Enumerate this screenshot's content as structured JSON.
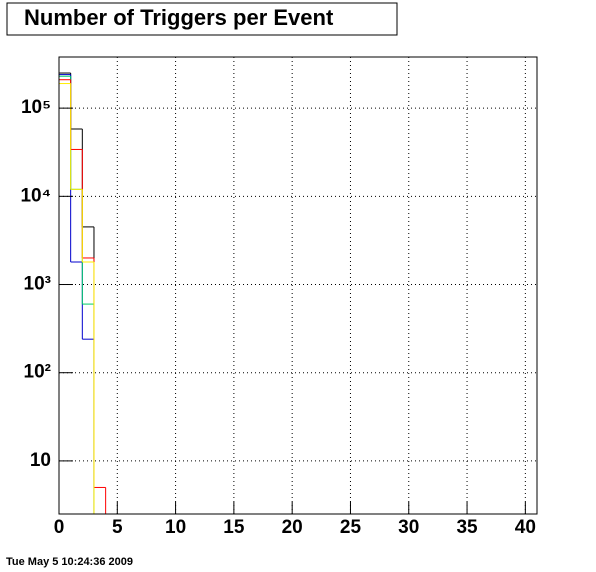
{
  "chart_data": {
    "type": "histogram",
    "title": "Number of Triggers per Event",
    "footer": "Tue May  5 10:24:36 2009",
    "bins": [
      0,
      1,
      2,
      3,
      4
    ],
    "series": [
      {
        "color": "#000000",
        "values": [
          250000,
          58000,
          4500,
          0
        ]
      },
      {
        "color": "#0000cc",
        "values": [
          240000,
          1800,
          240,
          0
        ]
      },
      {
        "color": "#00cc66",
        "values": [
          230000,
          12000,
          600,
          0
        ]
      },
      {
        "color": "#ff0000",
        "values": [
          210000,
          34000,
          2000,
          5
        ]
      },
      {
        "color": "#ffee00",
        "values": [
          190000,
          12000,
          1800,
          0
        ]
      }
    ],
    "xlim": [
      0,
      41
    ],
    "xticks": [
      0,
      5,
      10,
      15,
      20,
      25,
      30,
      35,
      40
    ],
    "ylim": [
      2.5,
      380000
    ],
    "log_y": true,
    "yticks": [
      10,
      {
        "value": 100,
        "label": "10²"
      },
      {
        "value": 1000,
        "label": "10³"
      },
      {
        "value": 10000,
        "label": "10⁴"
      },
      {
        "value": 100000,
        "label": "10⁵"
      }
    ],
    "grid": true
  }
}
